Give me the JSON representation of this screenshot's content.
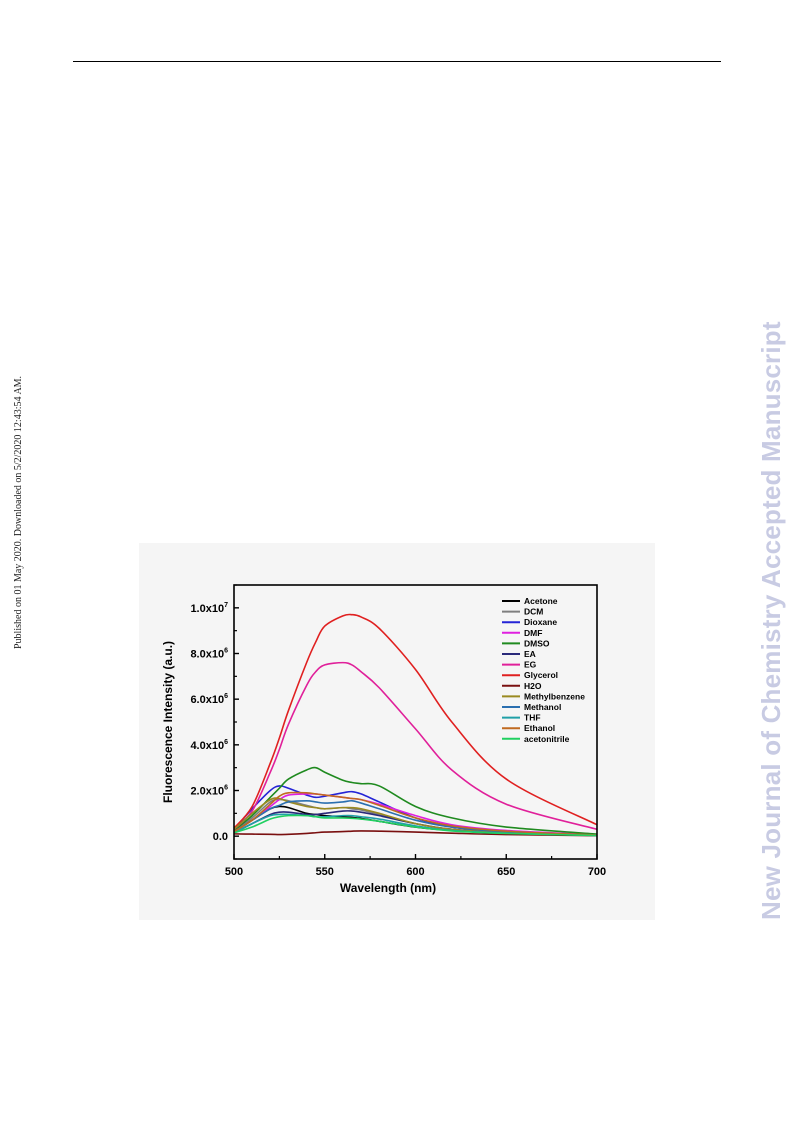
{
  "page": {
    "side_note": "Published on 01 May 2020. Downloaded on 5/2/2020 12:43:54 AM.",
    "watermark": "New Journal of Chemistry Accepted Manuscript"
  },
  "chart_data": {
    "type": "line",
    "xlabel": "Wavelength (nm)",
    "ylabel": "Fluorescence Intensity (a.u.)",
    "xlim": [
      500,
      700
    ],
    "ylim": [
      -1000000,
      11000000
    ],
    "x_ticks": [
      500,
      550,
      600,
      650,
      700
    ],
    "x_tick_labels": [
      "500",
      "550",
      "600",
      "650",
      "700"
    ],
    "y_ticks": [
      0,
      2000000,
      4000000,
      6000000,
      8000000,
      10000000
    ],
    "y_tick_labels": [
      {
        "mantissa": "0.0",
        "exp": ""
      },
      {
        "mantissa": "2.0x10",
        "exp": "6"
      },
      {
        "mantissa": "4.0x10",
        "exp": "6"
      },
      {
        "mantissa": "6.0x10",
        "exp": "6"
      },
      {
        "mantissa": "8.0x10",
        "exp": "6"
      },
      {
        "mantissa": "1.0x10",
        "exp": "7"
      }
    ],
    "legend_position": "top-right",
    "grid": false,
    "x": [
      500,
      510,
      520,
      525,
      530,
      540,
      545,
      550,
      560,
      565,
      570,
      580,
      600,
      620,
      650,
      700
    ],
    "series": [
      {
        "name": "Acetone",
        "color": "#000000",
        "values": [
          200000,
          700000,
          1200000,
          1300000,
          1250000,
          1000000,
          950000,
          900000,
          850000,
          820000,
          780000,
          650000,
          400000,
          250000,
          120000,
          30000
        ]
      },
      {
        "name": "DCM",
        "color": "#7f7f7f",
        "values": [
          200000,
          800000,
          1500000,
          1600000,
          1550000,
          1350000,
          1250000,
          1200000,
          1250000,
          1200000,
          1150000,
          950000,
          550000,
          300000,
          150000,
          40000
        ]
      },
      {
        "name": "Dioxane",
        "color": "#2424d6",
        "values": [
          300000,
          1200000,
          2000000,
          2200000,
          2100000,
          1800000,
          1700000,
          1750000,
          1900000,
          1950000,
          1850000,
          1500000,
          800000,
          400000,
          200000,
          50000
        ]
      },
      {
        "name": "DMF",
        "color": "#e020e0",
        "values": [
          200000,
          700000,
          1300000,
          1600000,
          1800000,
          1850000,
          1850000,
          1800000,
          1700000,
          1650000,
          1600000,
          1400000,
          900000,
          500000,
          250000,
          60000
        ]
      },
      {
        "name": "DMSO",
        "color": "#1f8a1f",
        "values": [
          250000,
          900000,
          1700000,
          2100000,
          2500000,
          2900000,
          3000000,
          2800000,
          2450000,
          2350000,
          2300000,
          2200000,
          1300000,
          800000,
          400000,
          90000
        ]
      },
      {
        "name": "EA",
        "color": "#2a2a7a",
        "values": [
          150000,
          550000,
          950000,
          1050000,
          1050000,
          950000,
          950000,
          1000000,
          1100000,
          1100000,
          1050000,
          900000,
          550000,
          300000,
          150000,
          40000
        ]
      },
      {
        "name": "EG",
        "color": "#e0209a",
        "values": [
          300000,
          1100000,
          2800000,
          3800000,
          4900000,
          6600000,
          7200000,
          7500000,
          7600000,
          7500000,
          7200000,
          6500000,
          4700000,
          2900000,
          1400000,
          300000
        ]
      },
      {
        "name": "Glycerol",
        "color": "#e02020",
        "values": [
          350000,
          1300000,
          3200000,
          4300000,
          5500000,
          7600000,
          8500000,
          9200000,
          9650000,
          9700000,
          9600000,
          9100000,
          7300000,
          5000000,
          2500000,
          500000
        ]
      },
      {
        "name": "H2O",
        "color": "#7a1010",
        "values": [
          100000,
          90000,
          80000,
          70000,
          80000,
          120000,
          150000,
          180000,
          200000,
          220000,
          230000,
          220000,
          180000,
          130000,
          70000,
          20000
        ]
      },
      {
        "name": "Methylbenzene",
        "color": "#9a8a20",
        "values": [
          300000,
          1000000,
          1600000,
          1650000,
          1500000,
          1300000,
          1250000,
          1200000,
          1250000,
          1250000,
          1200000,
          1000000,
          550000,
          300000,
          150000,
          40000
        ]
      },
      {
        "name": "Methanol",
        "color": "#2a6fb0",
        "values": [
          200000,
          700000,
          1200000,
          1350000,
          1500000,
          1550000,
          1500000,
          1450000,
          1500000,
          1550000,
          1450000,
          1200000,
          700000,
          400000,
          200000,
          50000
        ]
      },
      {
        "name": "THF",
        "color": "#20a0a8",
        "values": [
          150000,
          550000,
          900000,
          950000,
          950000,
          900000,
          850000,
          850000,
          900000,
          900000,
          850000,
          750000,
          450000,
          250000,
          130000,
          30000
        ]
      },
      {
        "name": "Ethanol",
        "color": "#c06a20",
        "values": [
          200000,
          700000,
          1400000,
          1750000,
          1900000,
          1900000,
          1850000,
          1800000,
          1700000,
          1650000,
          1600000,
          1350000,
          800000,
          450000,
          220000,
          50000
        ]
      },
      {
        "name": "acetonitrile",
        "color": "#20d060",
        "values": [
          150000,
          400000,
          750000,
          850000,
          900000,
          900000,
          850000,
          800000,
          800000,
          780000,
          750000,
          650000,
          400000,
          230000,
          120000,
          30000
        ]
      }
    ]
  }
}
